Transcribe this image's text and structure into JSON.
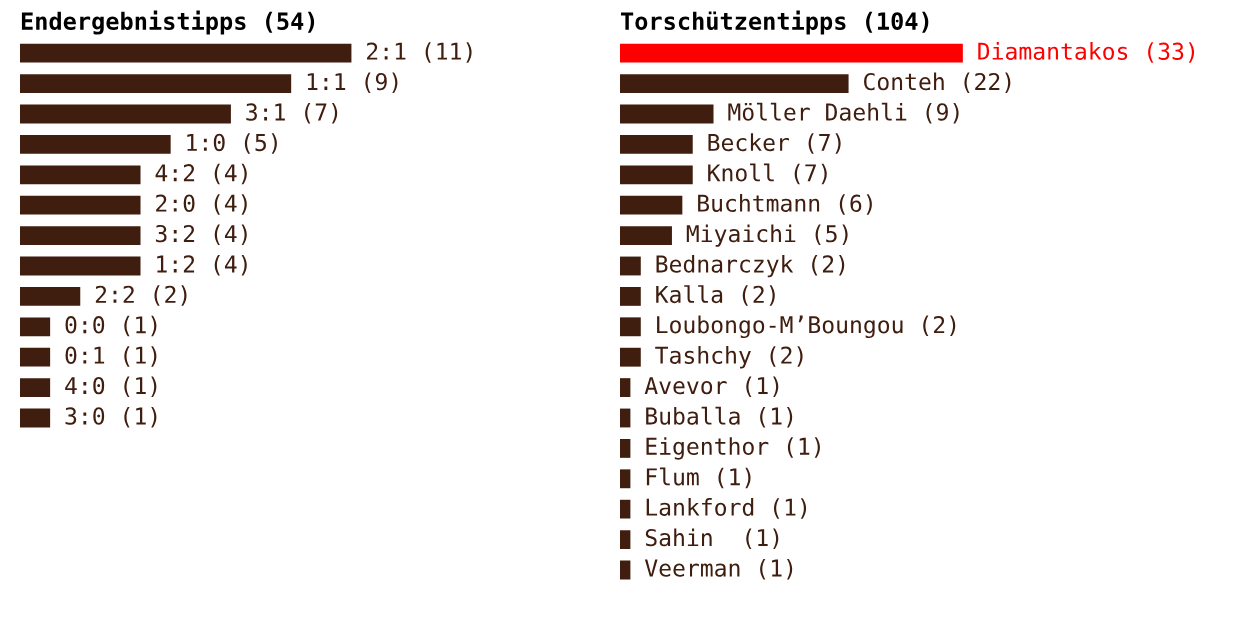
{
  "chart_data": [
    {
      "type": "bar",
      "orientation": "horizontal",
      "title": "Endergebnistipps (54)",
      "categories": [
        null,
        null,
        null,
        null,
        null,
        null,
        null,
        null,
        null,
        null,
        null,
        null,
        null
      ],
      "values": [
        11,
        9,
        7,
        5,
        4,
        4,
        4,
        4,
        2,
        1,
        1,
        1,
        1
      ],
      "value_labels": [
        "2:1 (11)",
        "1:1 (9)",
        "3:1 (7)",
        "1:0 (5)",
        "4:2 (4)",
        "2:0 (4)",
        "3:2 (4)",
        "1:2 (4)",
        "2:2 (2)",
        "0:0 (1)",
        "0:1 (1)",
        "4:0 (1)",
        "3:0 (1)"
      ],
      "colors": [
        "#3f1d0f",
        "#3f1d0f",
        "#3f1d0f",
        "#3f1d0f",
        "#3f1d0f",
        "#3f1d0f",
        "#3f1d0f",
        "#3f1d0f",
        "#3f1d0f",
        "#3f1d0f",
        "#3f1d0f",
        "#3f1d0f",
        "#3f1d0f"
      ],
      "tick_labels": false,
      "grid": false,
      "legend": false
    },
    {
      "type": "bar",
      "orientation": "horizontal",
      "title": "Torschützentipps (104)",
      "categories": [
        null,
        null,
        null,
        null,
        null,
        null,
        null,
        null,
        null,
        null,
        null,
        null,
        null,
        null,
        null,
        null,
        null,
        null
      ],
      "values": [
        33,
        22,
        9,
        7,
        7,
        6,
        5,
        2,
        2,
        2,
        2,
        1,
        1,
        1,
        1,
        1,
        1,
        1
      ],
      "value_labels": [
        "Diamantakos (33)",
        "Conteh (22)",
        "Möller Daehli (9)",
        "Becker (7)",
        "Knoll (7)",
        "Buchtmann (6)",
        "Miyaichi (5)",
        "Bednarczyk (2)",
        "Kalla (2)",
        "Loubongo-M’Boungou (2)",
        "Tashchy (2)",
        "Avevor (1)",
        "Buballa (1)",
        "Eigenthor (1)",
        "Flum (1)",
        "Lankford (1)",
        "Sahin  (1)",
        "Veerman (1)"
      ],
      "colors": [
        "#ff0000",
        "#3f1d0f",
        "#3f1d0f",
        "#3f1d0f",
        "#3f1d0f",
        "#3f1d0f",
        "#3f1d0f",
        "#3f1d0f",
        "#3f1d0f",
        "#3f1d0f",
        "#3f1d0f",
        "#3f1d0f",
        "#3f1d0f",
        "#3f1d0f",
        "#3f1d0f",
        "#3f1d0f",
        "#3f1d0f",
        "#3f1d0f"
      ],
      "tick_labels": false,
      "grid": false,
      "legend": false
    }
  ]
}
